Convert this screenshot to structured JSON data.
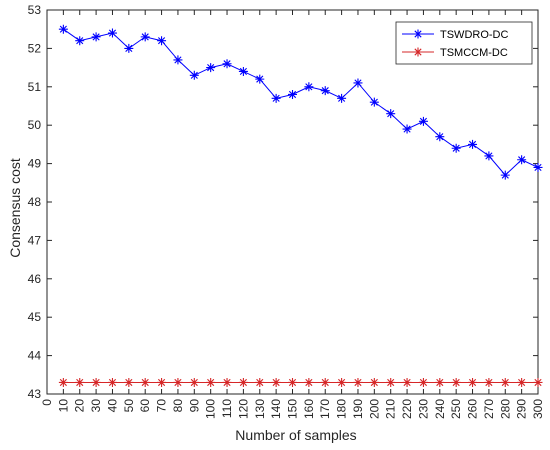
{
  "chart_data": {
    "type": "line",
    "xlabel": "Number of samples",
    "ylabel": "Consensus cost",
    "xlim": [
      0,
      300
    ],
    "ylim": [
      43,
      53
    ],
    "xticks": [
      0,
      10,
      20,
      30,
      40,
      50,
      60,
      70,
      80,
      90,
      100,
      110,
      120,
      130,
      140,
      150,
      160,
      170,
      180,
      190,
      200,
      210,
      220,
      230,
      240,
      250,
      260,
      270,
      280,
      290,
      300
    ],
    "yticks": [
      43,
      44,
      45,
      46,
      47,
      48,
      49,
      50,
      51,
      52,
      53
    ],
    "grid": false,
    "legend_position": "top-right",
    "x": [
      10,
      20,
      30,
      40,
      50,
      60,
      70,
      80,
      90,
      100,
      110,
      120,
      130,
      140,
      150,
      160,
      170,
      180,
      190,
      200,
      210,
      220,
      230,
      240,
      250,
      260,
      270,
      280,
      290,
      300
    ],
    "series": [
      {
        "name": "TSWDRO-DC",
        "color": "#0000ff",
        "marker": "asterisk",
        "values": [
          52.5,
          52.2,
          52.3,
          52.4,
          52.0,
          52.3,
          52.2,
          51.7,
          51.3,
          51.5,
          51.6,
          51.4,
          51.2,
          50.7,
          50.8,
          51.0,
          50.9,
          50.7,
          51.1,
          50.6,
          50.3,
          49.9,
          50.1,
          49.7,
          49.4,
          49.5,
          49.2,
          48.7,
          49.1,
          48.9
        ]
      },
      {
        "name": "TSMCCM-DC",
        "color": "#d62728",
        "marker": "asterisk",
        "values": [
          43.3,
          43.3,
          43.3,
          43.3,
          43.3,
          43.3,
          43.3,
          43.3,
          43.3,
          43.3,
          43.3,
          43.3,
          43.3,
          43.3,
          43.3,
          43.3,
          43.3,
          43.3,
          43.3,
          43.3,
          43.3,
          43.3,
          43.3,
          43.3,
          43.3,
          43.3,
          43.3,
          43.3,
          43.3,
          43.3
        ]
      }
    ]
  }
}
